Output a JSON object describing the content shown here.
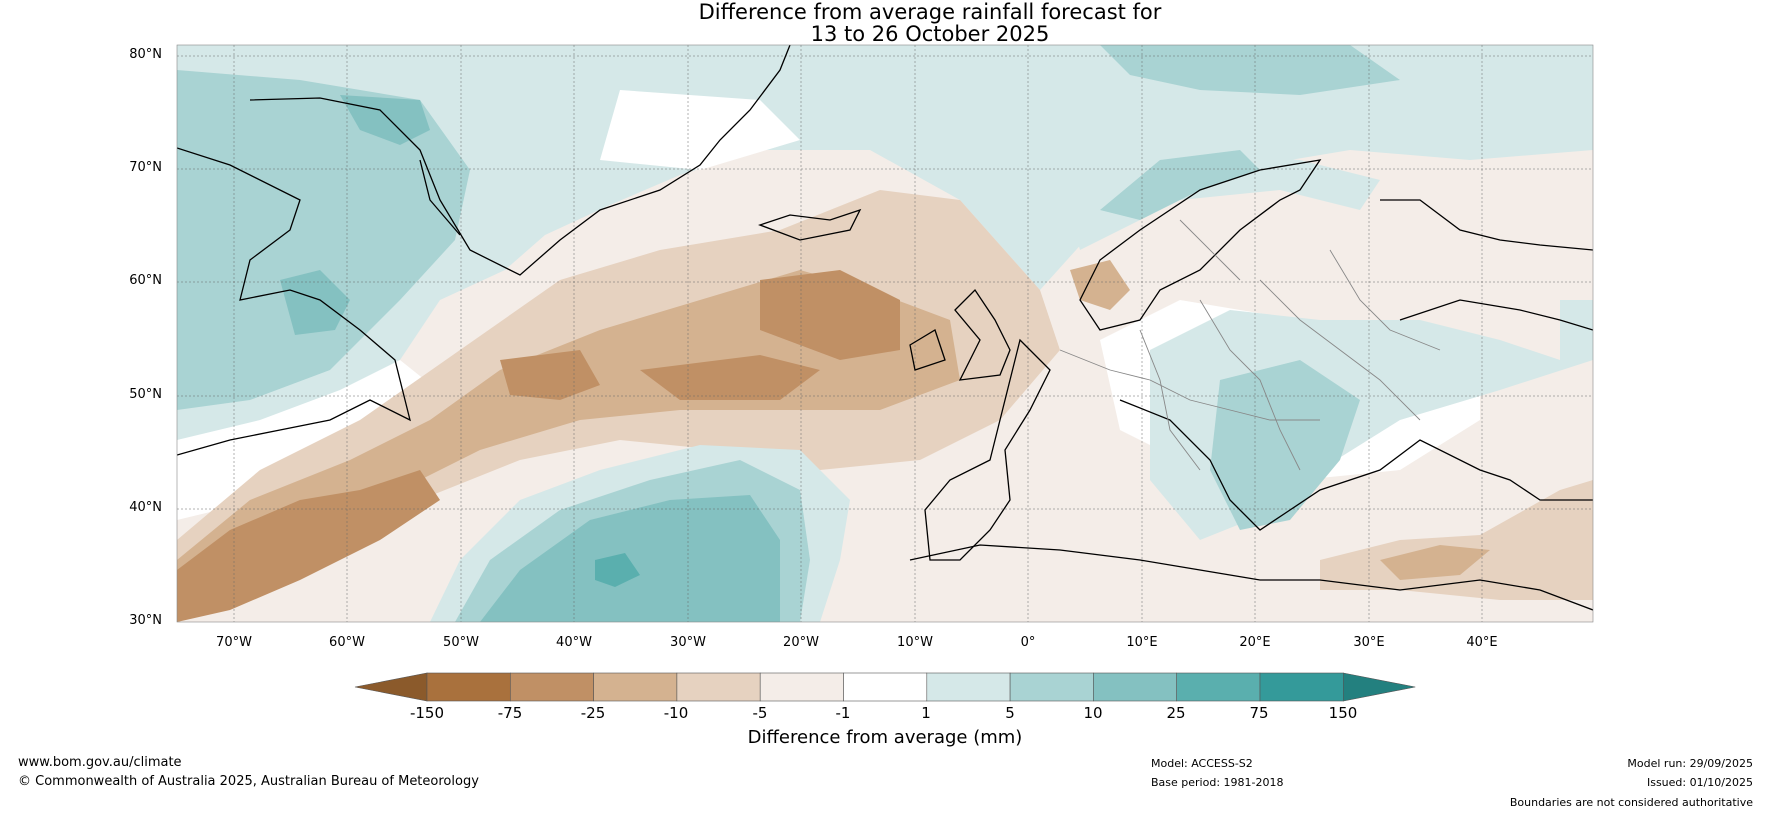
{
  "title": {
    "line1": "Difference from average rainfall forecast for",
    "line2": "13 to 26 October 2025"
  },
  "axes": {
    "lat_labels": [
      "80°N",
      "70°N",
      "60°N",
      "50°N",
      "40°N",
      "30°N"
    ],
    "lon_labels": [
      "70°W",
      "60°W",
      "50°W",
      "40°W",
      "30°W",
      "20°W",
      "10°W",
      "0°",
      "10°E",
      "20°E",
      "30°E",
      "40°E"
    ]
  },
  "colorbar": {
    "title": "Difference from average (mm)",
    "ticks": [
      "-150",
      "-75",
      "-25",
      "-10",
      "-5",
      "-1",
      "1",
      "5",
      "10",
      "25",
      "75",
      "150"
    ],
    "colors": [
      "#8b5a2b",
      "#a9713d",
      "#c09065",
      "#d4b290",
      "#e6d2c0",
      "#f4ede8",
      "#ffffff",
      "#d5e8e8",
      "#a9d3d3",
      "#84c1c1",
      "#5aafae",
      "#349a9a",
      "#23807f"
    ]
  },
  "footer": {
    "website": "www.bom.gov.au/climate",
    "copyright": "© Commonwealth of Australia 2025, Australian Bureau of Meteorology",
    "model": "Model: ACCESS-S2",
    "base_period": "Base period: 1981-2018",
    "model_run": "Model run: 29/09/2025",
    "issued": "Issued: 01/10/2025",
    "disclaimer": "Boundaries are not considered authoritative"
  }
}
